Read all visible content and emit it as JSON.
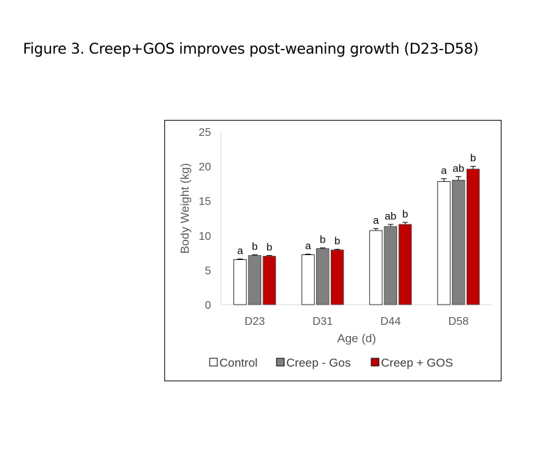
{
  "figure_title": "Figure 3. Creep+GOS improves post-weaning growth (D23-D58)",
  "chart_data": {
    "type": "bar",
    "title": "",
    "xlabel": "Age (d)",
    "ylabel": "Body Weight (kg)",
    "ylim": [
      0,
      25
    ],
    "yticks": [
      0,
      5,
      10,
      15,
      20,
      25
    ],
    "grid": false,
    "legend_position": "bottom",
    "categories": [
      "D23",
      "D31",
      "D44",
      "D58"
    ],
    "series": [
      {
        "name": "Control",
        "color": "#ffffff",
        "stroke": "#000000",
        "values": [
          6.5,
          7.2,
          10.7,
          17.8
        ],
        "errors": [
          0.1,
          0.1,
          0.3,
          0.4
        ],
        "labels": [
          "a",
          "a",
          "a",
          "a"
        ]
      },
      {
        "name": "Creep - Gos",
        "color": "#808080",
        "stroke": "#000000",
        "values": [
          7.1,
          8.1,
          11.3,
          18.0
        ],
        "errors": [
          0.1,
          0.1,
          0.3,
          0.5
        ],
        "labels": [
          "b",
          "b",
          "ab",
          "ab"
        ]
      },
      {
        "name": "Creep + GOS",
        "color": "#c00000",
        "stroke": "#000000",
        "values": [
          7.0,
          7.9,
          11.6,
          19.6
        ],
        "errors": [
          0.1,
          0.1,
          0.3,
          0.4
        ],
        "labels": [
          "b",
          "b",
          "b",
          "b"
        ]
      }
    ]
  }
}
